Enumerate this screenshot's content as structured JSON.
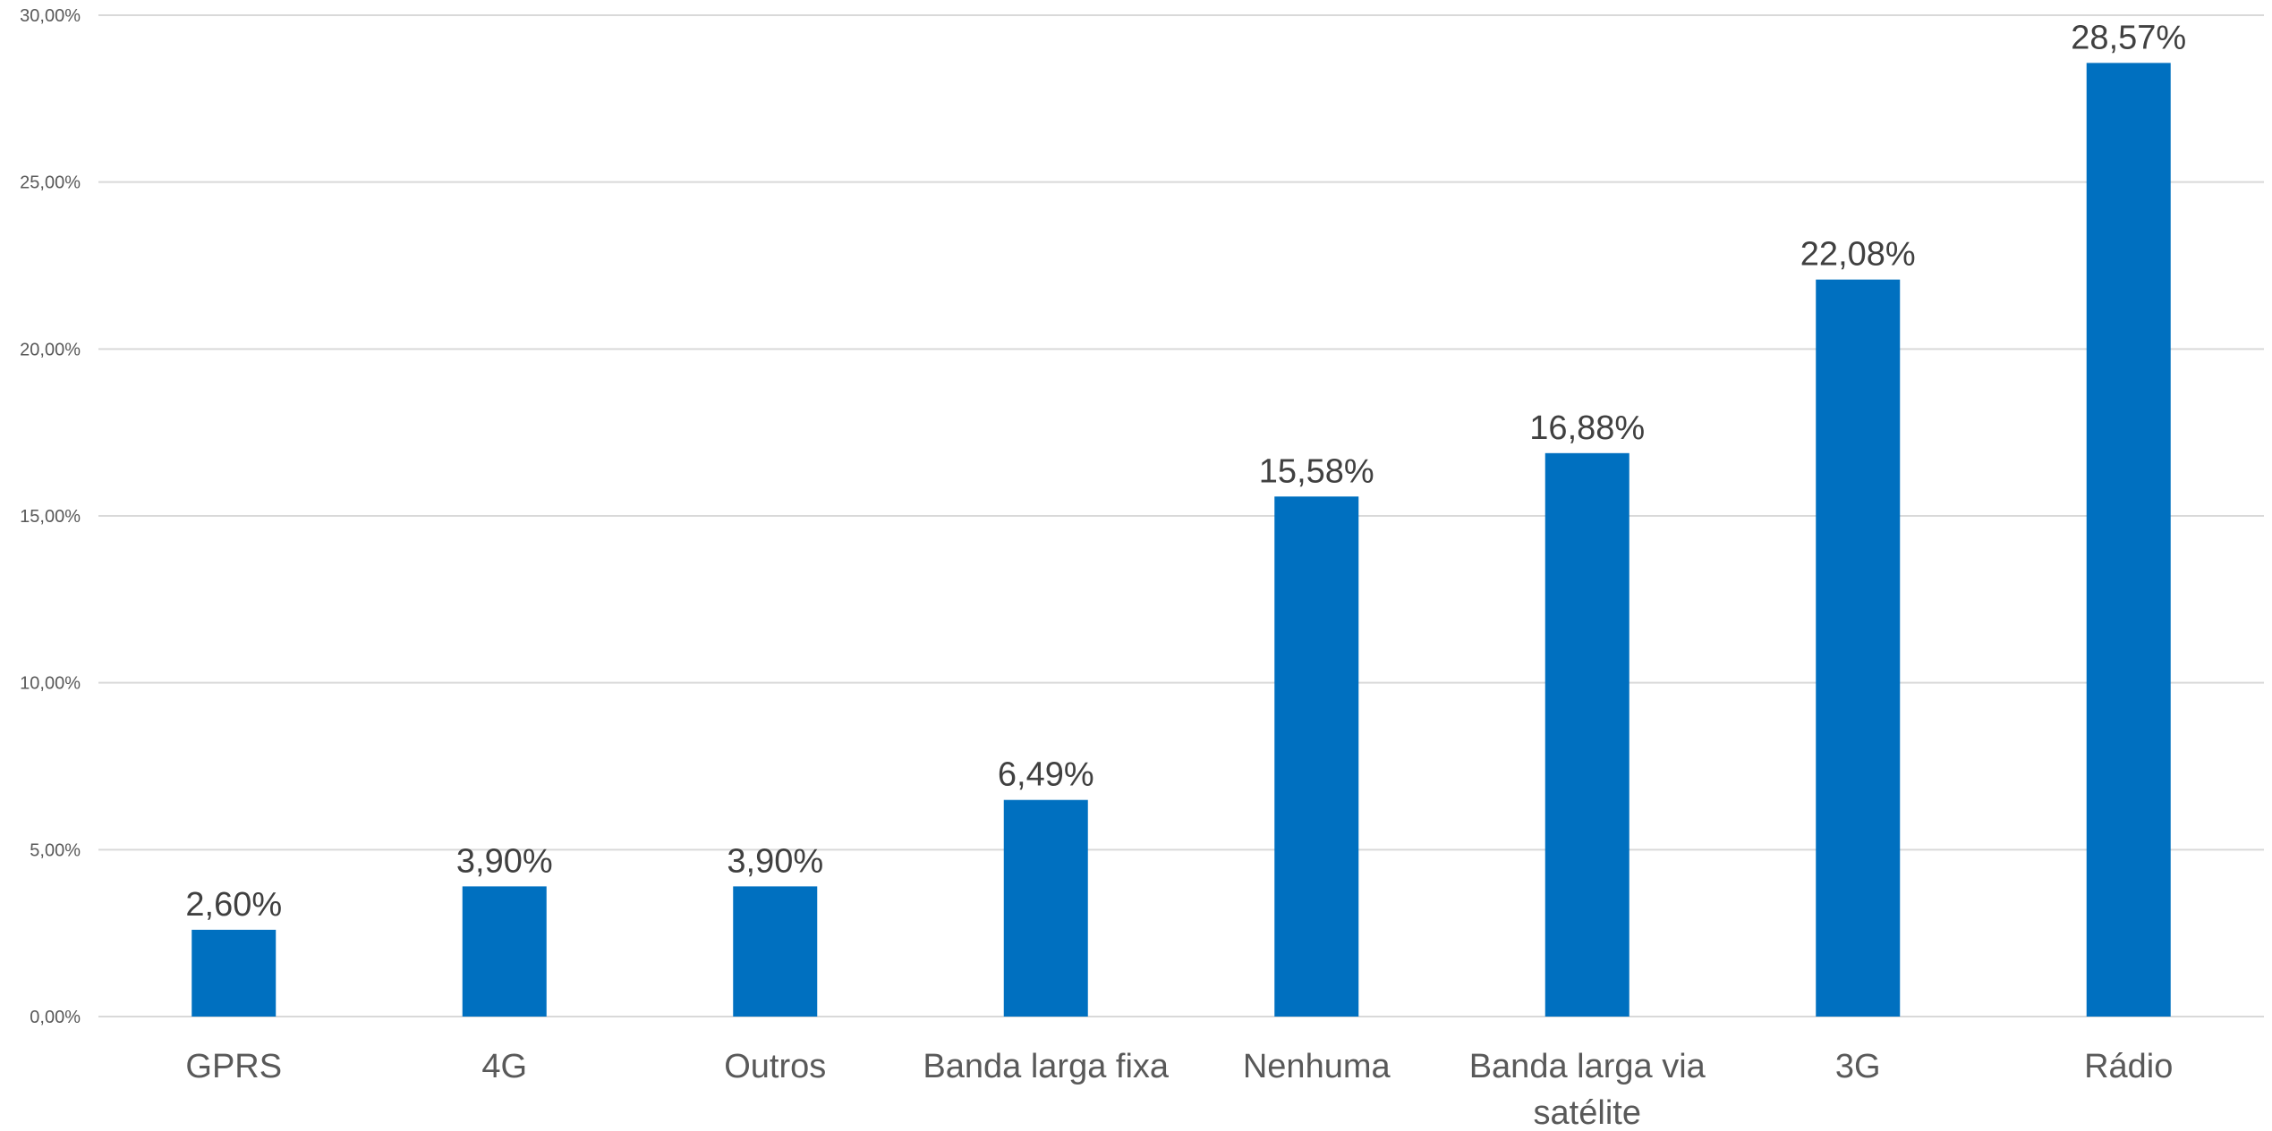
{
  "chart_data": {
    "type": "bar",
    "categories": [
      "GPRS",
      "4G",
      "Outros",
      "Banda larga fixa",
      "Nenhuma",
      "Banda larga via satélite",
      "3G",
      "Rádio"
    ],
    "category_labels": [
      [
        "GPRS"
      ],
      [
        "4G"
      ],
      [
        "Outros"
      ],
      [
        "Banda larga fixa"
      ],
      [
        "Nenhuma"
      ],
      [
        "Banda larga via",
        "satélite"
      ],
      [
        "3G"
      ],
      [
        "Rádio"
      ]
    ],
    "values": [
      2.6,
      3.9,
      3.9,
      6.49,
      15.58,
      16.88,
      22.08,
      28.57
    ],
    "data_labels": [
      "2,60%",
      "3,90%",
      "3,90%",
      "6,49%",
      "15,58%",
      "16,88%",
      "22,08%",
      "28,57%"
    ],
    "y_ticks": [
      0,
      5,
      10,
      15,
      20,
      25,
      30
    ],
    "y_tick_labels": [
      "0,00%",
      "5,00%",
      "10,00%",
      "15,00%",
      "20,00%",
      "25,00%",
      "30,00%"
    ],
    "ylim": [
      0,
      30
    ],
    "grid": true,
    "legend": "none",
    "bar_color": "#0070c0",
    "grid_color": "#d9d9d9",
    "title": "",
    "xlabel": "",
    "ylabel": ""
  }
}
